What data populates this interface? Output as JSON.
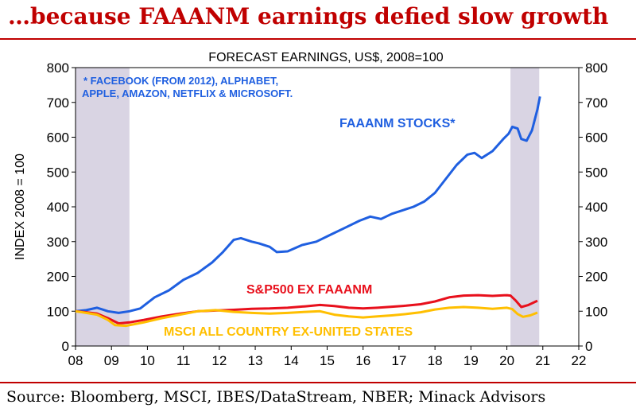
{
  "headline": "…because FAAANM earnings defied slow growth",
  "source": "Source: Bloomberg, MSCI, IBES/DataStream, NBER; Minack Advisors",
  "colors": {
    "headline": "#c00000",
    "faaanm": "#1f5fe0",
    "sp500": "#e8101c",
    "msci": "#ffbf00",
    "recession": "#d9d4e3"
  },
  "chart_data": {
    "type": "line",
    "title": "FORECAST EARNINGS, US$, 2008=100",
    "ylabel": "INDEX 2008 = 100",
    "xlabel": "",
    "xlim": [
      2008,
      2022
    ],
    "ylim": [
      0,
      800
    ],
    "x_tick_labels": [
      "08",
      "09",
      "10",
      "11",
      "12",
      "13",
      "14",
      "15",
      "16",
      "17",
      "18",
      "19",
      "20",
      "21",
      "22"
    ],
    "y_ticks": [
      0,
      100,
      200,
      300,
      400,
      500,
      600,
      700,
      800
    ],
    "note": [
      "* FACEBOOK (FROM 2012), ALPHABET,",
      "APPLE, AMAZON, NETFLIX & MICROSOFT."
    ],
    "recession_bands": [
      [
        2008.0,
        2009.5
      ],
      [
        2020.1,
        2020.9
      ]
    ],
    "grid": false,
    "series": [
      {
        "name": "FAAANM STOCKS*",
        "x": [
          2008.0,
          2008.3,
          2008.6,
          2008.9,
          2009.2,
          2009.5,
          2009.8,
          2010.2,
          2010.6,
          2011.0,
          2011.4,
          2011.8,
          2012.1,
          2012.4,
          2012.6,
          2012.9,
          2013.1,
          2013.4,
          2013.6,
          2013.9,
          2014.3,
          2014.7,
          2015.1,
          2015.5,
          2015.9,
          2016.2,
          2016.5,
          2016.8,
          2017.1,
          2017.4,
          2017.7,
          2018.0,
          2018.3,
          2018.6,
          2018.9,
          2019.1,
          2019.3,
          2019.6,
          2019.9,
          2020.05,
          2020.15,
          2020.3,
          2020.4,
          2020.55,
          2020.7,
          2020.85,
          2020.92
        ],
        "values": [
          100,
          103,
          110,
          100,
          95,
          100,
          108,
          140,
          160,
          190,
          210,
          240,
          270,
          305,
          310,
          300,
          295,
          285,
          270,
          272,
          290,
          300,
          320,
          340,
          360,
          372,
          365,
          380,
          390,
          400,
          415,
          440,
          480,
          520,
          550,
          555,
          540,
          560,
          595,
          610,
          630,
          625,
          595,
          590,
          620,
          680,
          717
        ]
      },
      {
        "name": "S&P500 EX FAAANM",
        "x": [
          2008.0,
          2008.3,
          2008.6,
          2008.9,
          2009.2,
          2009.5,
          2009.9,
          2010.4,
          2010.9,
          2011.4,
          2011.9,
          2012.4,
          2012.9,
          2013.4,
          2013.9,
          2014.4,
          2014.8,
          2015.2,
          2015.6,
          2016.0,
          2016.4,
          2016.8,
          2017.2,
          2017.6,
          2018.0,
          2018.4,
          2018.8,
          2019.2,
          2019.6,
          2020.0,
          2020.1,
          2020.25,
          2020.4,
          2020.6,
          2020.85
        ],
        "values": [
          100,
          97,
          93,
          80,
          65,
          68,
          75,
          85,
          93,
          100,
          102,
          104,
          107,
          108,
          110,
          114,
          118,
          115,
          110,
          108,
          110,
          113,
          116,
          120,
          128,
          140,
          145,
          146,
          144,
          146,
          145,
          130,
          112,
          118,
          130
        ]
      },
      {
        "name": "MSCI ALL COUNTRY EX-UNITED STATES",
        "x": [
          2008.0,
          2008.3,
          2008.6,
          2008.9,
          2009.1,
          2009.4,
          2009.9,
          2010.4,
          2010.9,
          2011.4,
          2011.9,
          2012.4,
          2012.9,
          2013.4,
          2013.9,
          2014.4,
          2014.8,
          2015.2,
          2015.6,
          2016.0,
          2016.4,
          2016.8,
          2017.2,
          2017.6,
          2018.0,
          2018.4,
          2018.8,
          2019.2,
          2019.6,
          2020.0,
          2020.15,
          2020.3,
          2020.45,
          2020.65,
          2020.85
        ],
        "values": [
          100,
          95,
          90,
          75,
          60,
          58,
          68,
          80,
          90,
          100,
          103,
          98,
          95,
          93,
          95,
          98,
          100,
          90,
          85,
          82,
          85,
          88,
          92,
          97,
          105,
          110,
          112,
          110,
          107,
          110,
          106,
          92,
          84,
          88,
          96
        ]
      }
    ]
  }
}
